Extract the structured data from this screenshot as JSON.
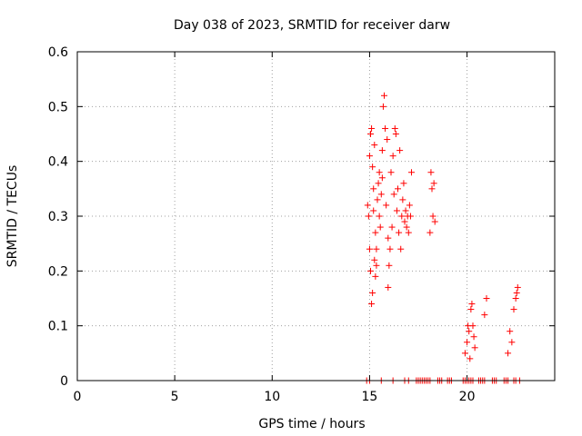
{
  "chart_data": {
    "type": "scatter",
    "title": "Day 038 of 2023, SRMTID for receiver darw",
    "xlabel": "GPS time / hours",
    "ylabel": "SRMTID / TECUs",
    "xlim": [
      0,
      24.5
    ],
    "ylim": [
      0,
      0.6
    ],
    "xticks": [
      0,
      5,
      10,
      15,
      20
    ],
    "xtick_labels": [
      "0",
      "5",
      "10",
      "15",
      "20"
    ],
    "yticks": [
      0,
      0.1,
      0.2,
      0.3,
      0.4,
      0.5,
      0.6
    ],
    "ytick_labels": [
      "0",
      "0.1",
      "0.2",
      "0.3",
      "0.4",
      "0.5",
      "0.6"
    ],
    "grid": true,
    "marker": "plus",
    "marker_color": "#ff0000",
    "series": [
      {
        "name": "darw",
        "x": [
          14.9,
          14.95,
          15.0,
          15.0,
          15.05,
          15.05,
          15.1,
          15.1,
          15.15,
          15.15,
          15.2,
          15.2,
          15.25,
          15.25,
          15.3,
          15.3,
          15.35,
          15.35,
          15.4,
          15.45,
          15.5,
          15.5,
          15.55,
          15.6,
          15.65,
          15.65,
          15.7,
          15.75,
          15.8,
          15.85,
          15.9,
          15.95,
          15.95,
          16.0,
          16.05,
          16.1,
          16.15,
          16.2,
          16.25,
          16.3,
          16.35,
          16.4,
          16.45,
          16.5,
          16.55,
          16.6,
          16.65,
          16.7,
          16.75,
          16.8,
          16.85,
          16.9,
          16.95,
          17.0,
          17.05,
          17.1,
          17.15,
          18.1,
          18.15,
          18.2,
          18.25,
          18.3,
          18.35,
          19.9,
          20.0,
          20.05,
          20.1,
          20.15,
          20.2,
          20.25,
          20.3,
          20.35,
          20.4,
          20.9,
          21.0,
          22.1,
          22.2,
          22.3,
          22.4,
          22.5,
          22.55,
          22.6,
          15.0,
          15.6,
          16.2,
          16.8,
          17.0,
          17.4,
          17.5,
          17.6,
          17.7,
          17.8,
          17.9,
          18.0,
          18.1,
          18.5,
          18.6,
          18.7,
          19.0,
          19.1,
          19.2,
          19.8,
          19.9,
          20.0,
          20.1,
          20.2,
          20.3,
          20.6,
          20.7,
          20.8,
          20.9,
          21.3,
          21.4,
          21.5,
          21.9,
          22.0,
          22.1,
          22.4,
          22.5,
          22.7,
          14.85
        ],
        "y": [
          0.32,
          0.3,
          0.41,
          0.24,
          0.45,
          0.2,
          0.46,
          0.14,
          0.39,
          0.16,
          0.35,
          0.31,
          0.43,
          0.22,
          0.27,
          0.19,
          0.24,
          0.21,
          0.33,
          0.36,
          0.3,
          0.38,
          0.28,
          0.34,
          0.42,
          0.37,
          0.5,
          0.52,
          0.46,
          0.32,
          0.44,
          0.26,
          0.17,
          0.21,
          0.24,
          0.38,
          0.28,
          0.41,
          0.34,
          0.46,
          0.45,
          0.31,
          0.35,
          0.27,
          0.42,
          0.24,
          0.3,
          0.33,
          0.36,
          0.29,
          0.31,
          0.28,
          0.3,
          0.27,
          0.32,
          0.3,
          0.38,
          0.27,
          0.38,
          0.35,
          0.3,
          0.36,
          0.29,
          0.05,
          0.07,
          0.1,
          0.09,
          0.04,
          0.13,
          0.14,
          0.1,
          0.08,
          0.06,
          0.12,
          0.15,
          0.05,
          0.09,
          0.07,
          0.13,
          0.15,
          0.16,
          0.17,
          0.0,
          0.0,
          0.0,
          0.0,
          0.0,
          0.0,
          0.0,
          0.0,
          0.0,
          0.0,
          0.0,
          0.0,
          0.0,
          0.0,
          0.0,
          0.0,
          0.0,
          0.0,
          0.0,
          0.0,
          0.0,
          0.0,
          0.0,
          0.0,
          0.0,
          0.0,
          0.0,
          0.0,
          0.0,
          0.0,
          0.0,
          0.0,
          0.0,
          0.0,
          0.0,
          0.0,
          0.0,
          0.0,
          0.0
        ]
      }
    ]
  }
}
